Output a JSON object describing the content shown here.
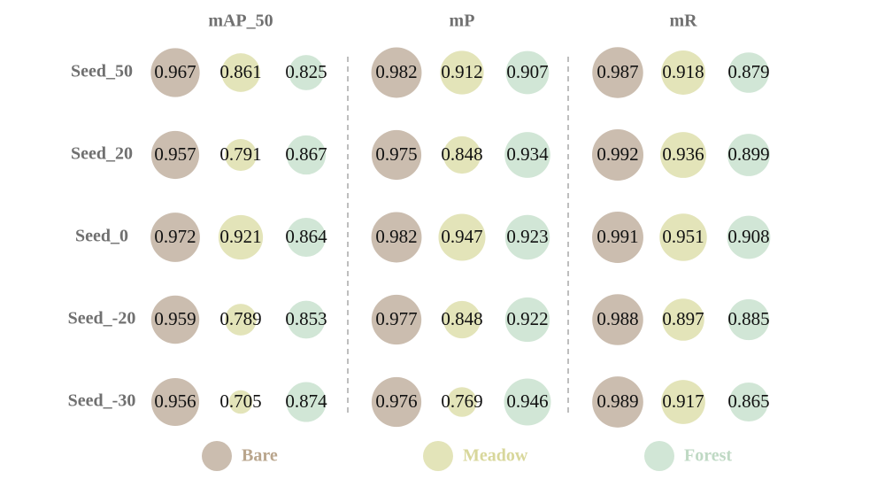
{
  "chart_data": {
    "type": "bubble-matrix",
    "groups": [
      "mAP_50",
      "mP",
      "mR"
    ],
    "rows": [
      "Seed_50",
      "Seed_20",
      "Seed_0",
      "Seed_-20",
      "Seed_-30"
    ],
    "series": [
      {
        "name": "Bare",
        "color": "#cbbdaf"
      },
      {
        "name": "Meadow",
        "color": "#e3e4b9"
      },
      {
        "name": "Forest",
        "color": "#d1e6d6"
      }
    ],
    "legend_text_colors": [
      "#b9a58c",
      "#d8d79b",
      "#bfd9c4"
    ],
    "values": [
      [
        [
          0.967,
          0.861,
          0.825
        ],
        [
          0.982,
          0.912,
          0.907
        ],
        [
          0.987,
          0.918,
          0.879
        ]
      ],
      [
        [
          0.957,
          0.791,
          0.867
        ],
        [
          0.975,
          0.848,
          0.934
        ],
        [
          0.992,
          0.936,
          0.899
        ]
      ],
      [
        [
          0.972,
          0.921,
          0.864
        ],
        [
          0.982,
          0.947,
          0.923
        ],
        [
          0.991,
          0.951,
          0.908
        ]
      ],
      [
        [
          0.959,
          0.789,
          0.853
        ],
        [
          0.977,
          0.848,
          0.922
        ],
        [
          0.988,
          0.897,
          0.885
        ]
      ],
      [
        [
          0.956,
          0.705,
          0.874
        ],
        [
          0.976,
          0.769,
          0.946
        ],
        [
          0.989,
          0.917,
          0.865
        ]
      ]
    ],
    "legend_position": "bottom"
  }
}
